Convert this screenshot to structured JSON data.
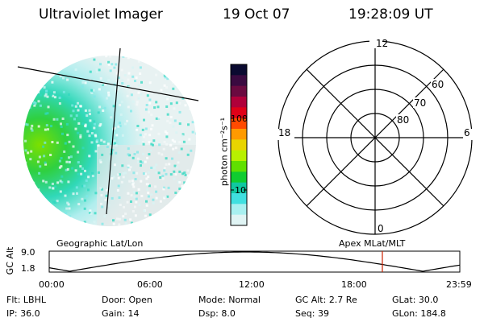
{
  "header": {
    "instrument": "Ultraviolet Imager",
    "date": "19 Oct 07",
    "time": "19:28:09 UT"
  },
  "colorbar": {
    "unit_label": "photon cm⁻²s⁻¹",
    "ticks": [
      "100",
      "10"
    ],
    "colors": [
      "#0a0a30",
      "#3a0a40",
      "#6a0a40",
      "#b0003a",
      "#e00018",
      "#ff4a00",
      "#ff9a00",
      "#e8d400",
      "#b8f000",
      "#60e000",
      "#10cc30",
      "#10c8a0",
      "#40e0e0",
      "#a8f0f0",
      "#e0f4f4"
    ]
  },
  "polar_plot": {
    "hour_labels": {
      "top": "12",
      "left": "18",
      "right": "6",
      "bottom": "0"
    },
    "lat_labels": [
      "60",
      "70",
      "80"
    ]
  },
  "timeline": {
    "left_title": "Geographic Lat/Lon",
    "right_title": "Apex MLat/MLT",
    "y_axis_label": "GC Alt",
    "y_ticks": [
      "9.0",
      "1.8"
    ],
    "x_ticks": [
      "00:00",
      "06:00",
      "12:00",
      "18:00",
      "23:59"
    ],
    "marker_time": "19:28"
  },
  "footer": {
    "row1": [
      {
        "label": "Flt:",
        "value": "LBHL"
      },
      {
        "label": "Door:",
        "value": "Open"
      },
      {
        "label": "Mode:",
        "value": "Normal"
      },
      {
        "label": "GC Alt:",
        "value": "2.7 Re"
      },
      {
        "label": "GLat:",
        "value": "30.0"
      }
    ],
    "row2": [
      {
        "label": "IP:",
        "value": "36.0"
      },
      {
        "label": "Gain:",
        "value": "14"
      },
      {
        "label": "Dsp:",
        "value": "8.0"
      },
      {
        "label": "Seq:",
        "value": "39"
      },
      {
        "label": "GLon:",
        "value": "184.8"
      }
    ]
  }
}
